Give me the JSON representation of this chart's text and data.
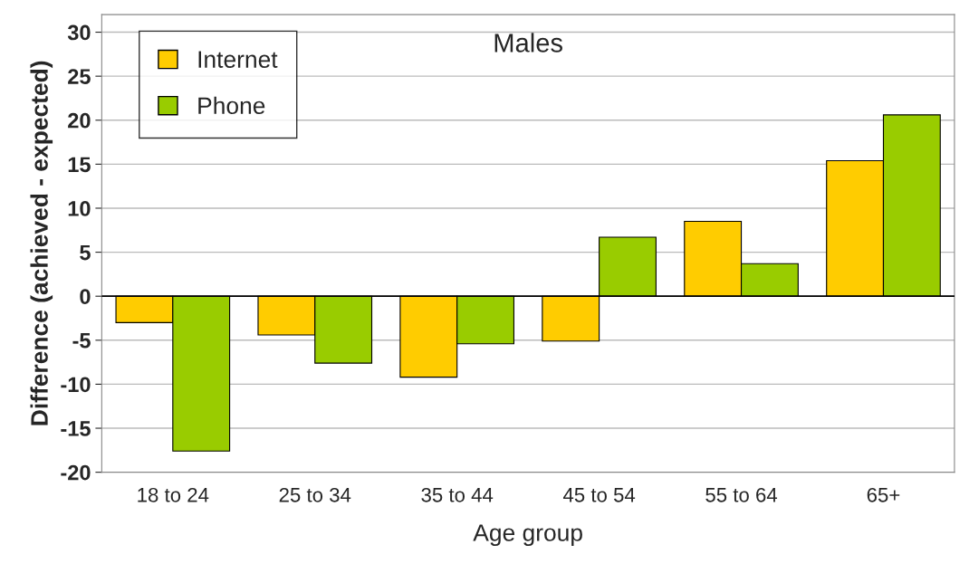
{
  "chart_data": {
    "type": "bar",
    "title": "Males",
    "xlabel": "Age group",
    "ylabel": "Difference (achieved - expected)",
    "categories": [
      "18 to 24",
      "25 to 34",
      "35 to 44",
      "45 to 54",
      "55 to 64",
      "65+"
    ],
    "series": [
      {
        "name": "Internet",
        "color": "#ffcc00",
        "values": [
          -3,
          -4.4,
          -9.2,
          -5.1,
          8.5,
          15.4
        ]
      },
      {
        "name": "Phone",
        "color": "#99cc00",
        "values": [
          -17.6,
          -7.6,
          -5.4,
          6.7,
          3.7,
          20.6
        ]
      }
    ],
    "ylim": [
      -20,
      32
    ],
    "yticks": [
      -20,
      -15,
      -10,
      -5,
      0,
      5,
      10,
      15,
      20,
      25,
      30
    ],
    "grid": "y",
    "legend": "top left"
  }
}
